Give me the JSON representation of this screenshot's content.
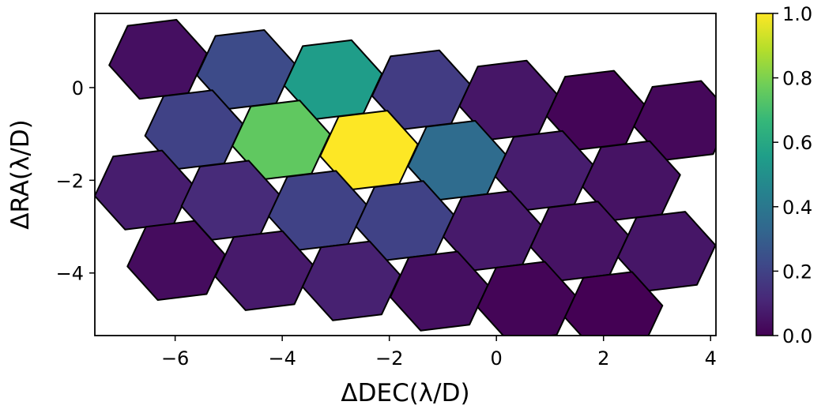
{
  "chart_data": {
    "type": "heatmap",
    "cell_shape": "hexagon",
    "xlabel": "ΔDEC(λ/D)",
    "ylabel": "ΔRA(λ/D)",
    "xlim": [
      -7.5,
      4.1
    ],
    "ylim": [
      -5.35,
      1.6
    ],
    "xticks": [
      -6,
      -4,
      -2,
      0,
      2,
      4
    ],
    "yticks": [
      -4,
      -2,
      0
    ],
    "hex_circumradius": 0.92,
    "hex_rotation_deg": 8,
    "colorbar": {
      "colormap": "viridis",
      "min": 0.0,
      "max": 1.0,
      "ticks": [
        0.0,
        0.2,
        0.4,
        0.6,
        0.8,
        1.0
      ],
      "tick_labels": [
        "0.0",
        "0.2",
        "0.4",
        "0.6",
        "0.8",
        "1.0"
      ]
    },
    "cells": [
      {
        "x": -6.32,
        "y": 0.61,
        "value": 0.04
      },
      {
        "x": -4.68,
        "y": 0.39,
        "value": 0.23
      },
      {
        "x": -3.05,
        "y": 0.17,
        "value": 0.55
      },
      {
        "x": -1.41,
        "y": -0.05,
        "value": 0.18
      },
      {
        "x": 0.22,
        "y": -0.27,
        "value": 0.06
      },
      {
        "x": 1.85,
        "y": -0.49,
        "value": 0.01
      },
      {
        "x": 3.48,
        "y": -0.71,
        "value": 0.02
      },
      {
        "x": -5.65,
        "y": -0.91,
        "value": 0.2
      },
      {
        "x": -4.02,
        "y": -1.13,
        "value": 0.75
      },
      {
        "x": -2.38,
        "y": -1.35,
        "value": 1.0
      },
      {
        "x": -0.74,
        "y": -1.57,
        "value": 0.35
      },
      {
        "x": 0.89,
        "y": -1.79,
        "value": 0.08
      },
      {
        "x": 2.52,
        "y": -2.01,
        "value": 0.05
      },
      {
        "x": -6.59,
        "y": -2.21,
        "value": 0.08
      },
      {
        "x": -4.97,
        "y": -2.43,
        "value": 0.12
      },
      {
        "x": -3.34,
        "y": -2.65,
        "value": 0.2
      },
      {
        "x": -1.71,
        "y": -2.87,
        "value": 0.2
      },
      {
        "x": -0.08,
        "y": -3.09,
        "value": 0.07
      },
      {
        "x": 1.55,
        "y": -3.31,
        "value": 0.05
      },
      {
        "x": 3.18,
        "y": -3.53,
        "value": 0.06
      },
      {
        "x": -5.98,
        "y": -3.73,
        "value": 0.03
      },
      {
        "x": -4.34,
        "y": -3.95,
        "value": 0.07
      },
      {
        "x": -2.71,
        "y": -4.17,
        "value": 0.09
      },
      {
        "x": -1.07,
        "y": -4.39,
        "value": 0.04
      },
      {
        "x": 0.56,
        "y": -4.61,
        "value": 0.01
      },
      {
        "x": 2.19,
        "y": -4.83,
        "value": 0.0
      }
    ]
  }
}
